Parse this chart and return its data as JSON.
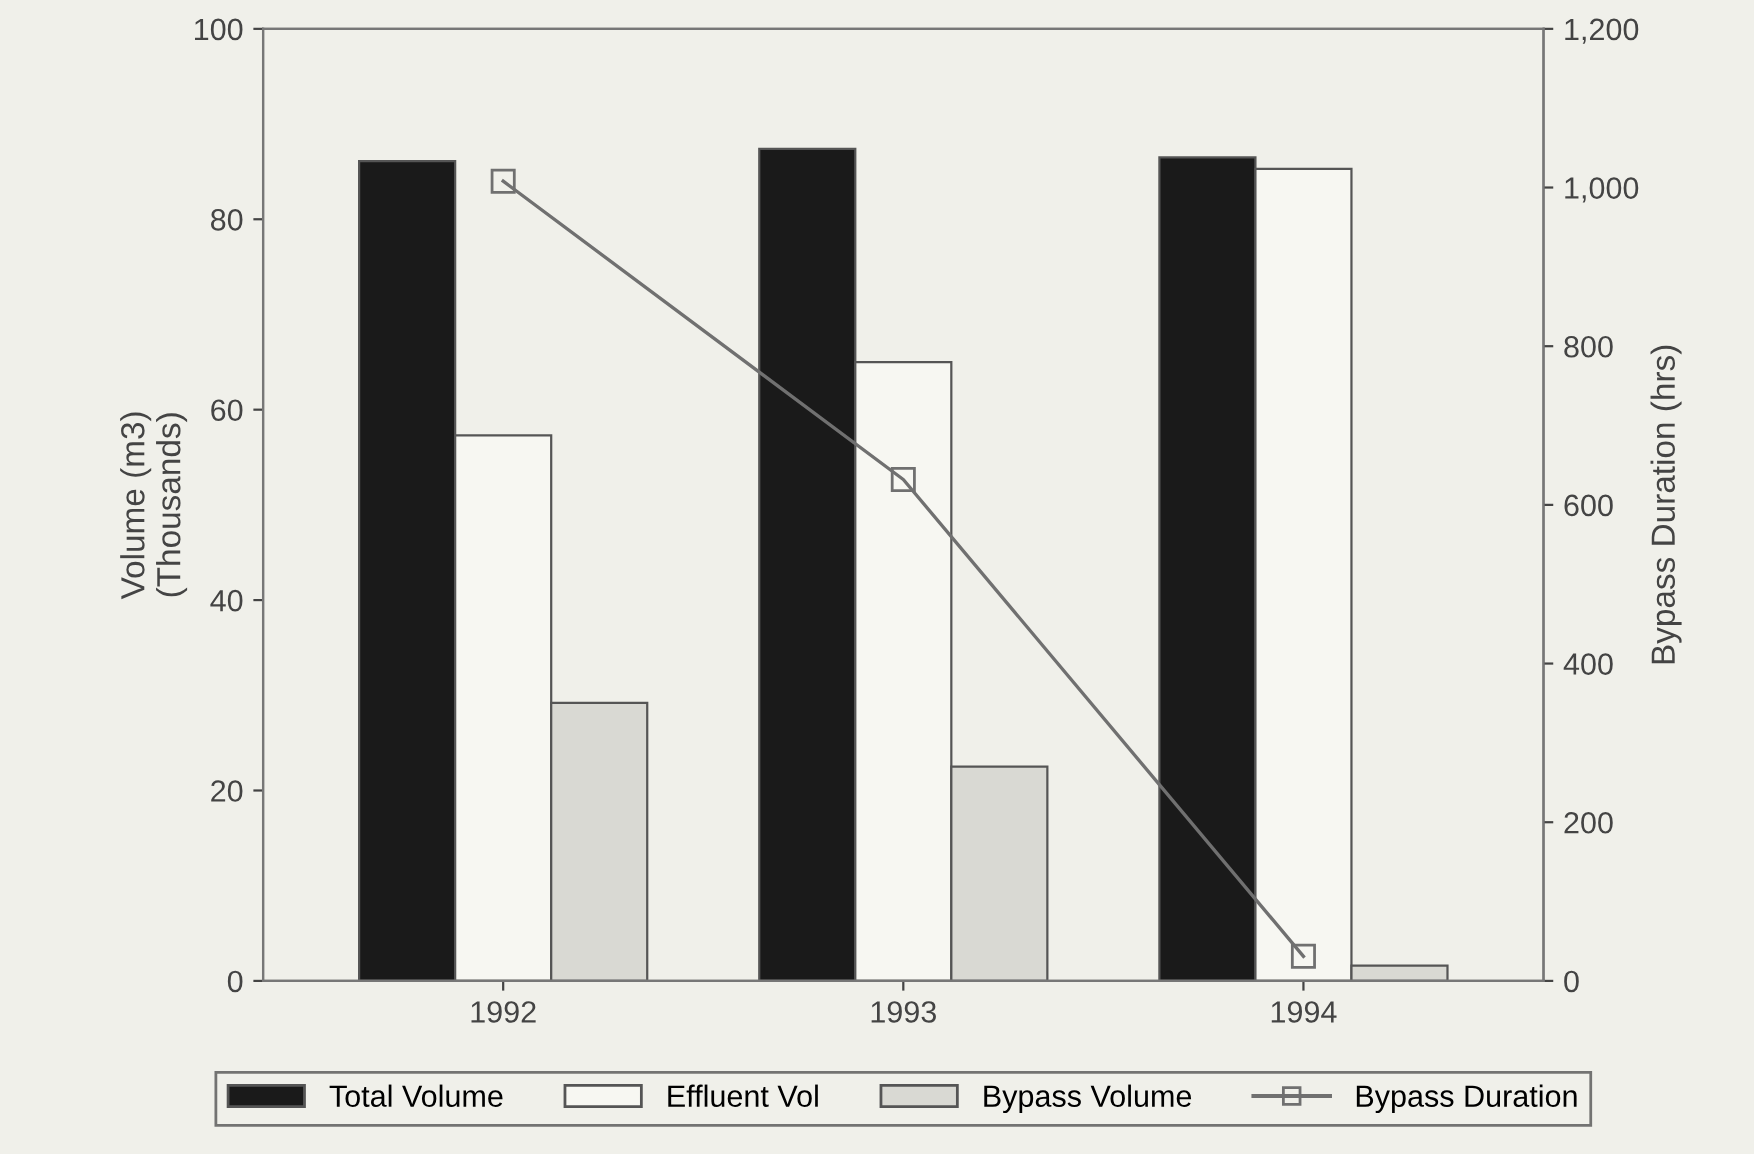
{
  "chart_data": {
    "type": "bar",
    "categories": [
      "1992",
      "1993",
      "1994"
    ],
    "ylabel": "Volume (m3)\n(Thousands)",
    "y2label": "Bypass Duration (hrs)",
    "series": [
      {
        "name": "Total Volume",
        "color": "#1a1a1a",
        "values": [
          86.1,
          87.4,
          86.5
        ]
      },
      {
        "name": "Effluent Vol",
        "color": "#f7f7f2",
        "values": [
          57.3,
          65.0,
          85.3
        ]
      },
      {
        "name": "Bypass Volume",
        "color": "#d9d9d3",
        "values": [
          29.2,
          22.5,
          1.6
        ]
      },
      {
        "name": "Bypass Duration",
        "type": "line",
        "axis": "y2",
        "color": "#707070",
        "values": [
          1008,
          632,
          31
        ]
      }
    ],
    "ylim": [
      0,
      100
    ],
    "yticks": [
      0,
      20,
      40,
      60,
      80,
      100
    ],
    "y2lim": [
      0,
      1200
    ],
    "y2ticks": [
      {
        "value": 0,
        "label": "0"
      },
      {
        "value": 200,
        "label": "200"
      },
      {
        "value": 400,
        "label": "400"
      },
      {
        "value": 600,
        "label": "600"
      },
      {
        "value": 800,
        "label": "800"
      },
      {
        "value": 1000,
        "label": "1,000"
      },
      {
        "value": 1200,
        "label": "1,200"
      }
    ],
    "marker": "square",
    "line_style": "solid",
    "grid": false,
    "legend": "bottom"
  }
}
